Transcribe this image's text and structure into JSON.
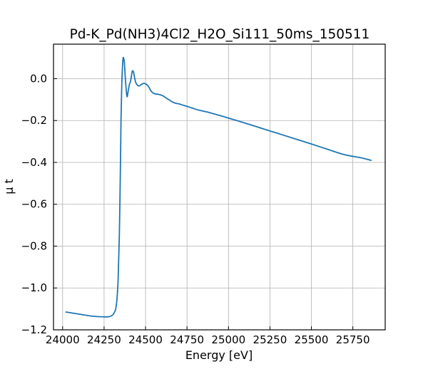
{
  "chart_data": {
    "type": "line",
    "title": "Pd-K_Pd(NH3)4Cl2_H2O_Si111_50ms_150511",
    "xlabel": "Energy [eV]",
    "ylabel": "μ t",
    "xlim": [
      23945,
      25945
    ],
    "ylim": [
      -1.2,
      0.165
    ],
    "x_ticks": [
      24000,
      24250,
      24500,
      24750,
      25000,
      25250,
      25500,
      25750
    ],
    "x_tick_labels": [
      "24000",
      "24250",
      "24500",
      "24750",
      "25000",
      "25250",
      "25500",
      "25750"
    ],
    "y_ticks": [
      -1.2,
      -1.0,
      -0.8,
      -0.6,
      -0.4,
      -0.2,
      0.0
    ],
    "y_tick_labels": [
      "−1.2",
      "−1.0",
      "−0.8",
      "−0.6",
      "−0.4",
      "−0.2",
      "0.0"
    ],
    "grid": true,
    "line_color": "#1f77b4",
    "series": [
      {
        "x": [
          24020,
          24100,
          24180,
          24250,
          24280,
          24300,
          24310,
          24320,
          24328,
          24335,
          24342,
          24348,
          24352,
          24356,
          24360,
          24365,
          24372,
          24376,
          24380,
          24388,
          24395,
          24402,
          24410,
          24420,
          24428,
          24435,
          24442,
          24450,
          24460,
          24470,
          24480,
          24490,
          24500,
          24510,
          24520,
          24530,
          24540,
          24555,
          24575,
          24600,
          24620,
          24640,
          24660,
          24680,
          24700,
          24720,
          24750,
          24780,
          24820,
          24860,
          24900,
          25000,
          25100,
          25200,
          25300,
          25400,
          25500,
          25600,
          25700,
          25800,
          25860
        ],
        "y": [
          -1.115,
          -1.125,
          -1.135,
          -1.138,
          -1.137,
          -1.13,
          -1.12,
          -1.1,
          -1.05,
          -0.95,
          -0.75,
          -0.45,
          -0.2,
          -0.05,
          0.04,
          0.1,
          0.08,
          0.03,
          -0.02,
          -0.085,
          -0.06,
          -0.03,
          -0.01,
          0.035,
          0.03,
          0.0,
          -0.02,
          -0.03,
          -0.035,
          -0.03,
          -0.025,
          -0.022,
          -0.025,
          -0.03,
          -0.04,
          -0.055,
          -0.065,
          -0.072,
          -0.074,
          -0.08,
          -0.09,
          -0.1,
          -0.11,
          -0.117,
          -0.12,
          -0.125,
          -0.132,
          -0.14,
          -0.15,
          -0.157,
          -0.165,
          -0.188,
          -0.212,
          -0.237,
          -0.262,
          -0.287,
          -0.312,
          -0.338,
          -0.363,
          -0.378,
          -0.39
        ]
      }
    ]
  }
}
